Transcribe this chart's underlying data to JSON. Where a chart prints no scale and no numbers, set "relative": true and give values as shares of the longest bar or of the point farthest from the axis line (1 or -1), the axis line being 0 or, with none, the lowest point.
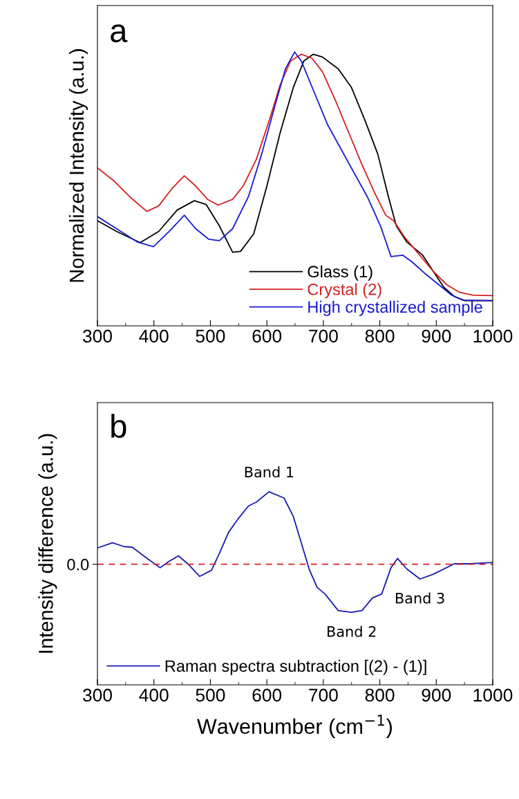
{
  "chart_data": [
    {
      "type": "line",
      "relative": true,
      "ylabel": "Normalized Intensity (a.u.)",
      "xlim": [
        300,
        1000
      ],
      "xticks": [
        300,
        400,
        500,
        600,
        700,
        800,
        900,
        1000
      ],
      "tick_labels": "x",
      "legend": "bottom right",
      "grid": false,
      "annotations": [
        "a"
      ],
      "series": [
        {
          "name": "Glass (1)",
          "color": "#000000",
          "x": [
            300,
            333.7,
            375.7,
            408.5,
            441.2,
            471.6,
            492.6,
            516,
            539.4,
            553.4,
            576.8,
            600.1,
            623.5,
            646.9,
            665.6,
            682,
            698.3,
            726.4,
            749.7,
            773.1,
            796.5,
            815.2,
            829.2,
            847.9,
            876,
            894.7,
            913.4,
            932.1,
            950.8,
            1000
          ],
          "values": [
            0.384,
            0.345,
            0.304,
            0.345,
            0.423,
            0.457,
            0.443,
            0.365,
            0.269,
            0.272,
            0.336,
            0.511,
            0.705,
            0.871,
            0.968,
            0.992,
            0.982,
            0.939,
            0.871,
            0.754,
            0.627,
            0.472,
            0.365,
            0.306,
            0.258,
            0.199,
            0.141,
            0.107,
            0.092,
            0.092
          ]
        },
        {
          "name": "Crystal (2)",
          "color": "#d42020",
          "x": [
            300,
            329,
            357,
            387.4,
            408.5,
            431.8,
            453.8,
            473.9,
            495,
            513.7,
            539.4,
            558.1,
            581.4,
            604.8,
            623.5,
            642.2,
            660.9,
            679.6,
            698.3,
            721.7,
            745.1,
            768.4,
            791.8,
            810.5,
            824.5,
            843.2,
            866.6,
            894.7,
            918,
            941.4,
            964.8,
            1000
          ],
          "values": [
            0.577,
            0.53,
            0.472,
            0.418,
            0.438,
            0.501,
            0.548,
            0.511,
            0.462,
            0.441,
            0.462,
            0.511,
            0.608,
            0.754,
            0.88,
            0.968,
            0.992,
            0.978,
            0.929,
            0.822,
            0.705,
            0.589,
            0.482,
            0.404,
            0.384,
            0.326,
            0.268,
            0.199,
            0.151,
            0.122,
            0.112,
            0.11
          ]
        },
        {
          "name": "High crystallized sample",
          "color": "#1a1ad0",
          "x": [
            300,
            333.7,
            371.1,
            399.1,
            427.2,
            453.8,
            473.9,
            497.3,
            516,
            539.4,
            567.4,
            590.8,
            614.2,
            632.9,
            649.2,
            660.9,
            684.3,
            707.7,
            731,
            754.4,
            777.8,
            801.2,
            819.9,
            840.9,
            857.3,
            880.6,
            904,
            927.4,
            946.1,
            1000
          ],
          "values": [
            0.399,
            0.355,
            0.306,
            0.289,
            0.345,
            0.404,
            0.355,
            0.316,
            0.311,
            0.355,
            0.472,
            0.627,
            0.803,
            0.939,
            1.0,
            0.968,
            0.851,
            0.734,
            0.647,
            0.559,
            0.472,
            0.365,
            0.253,
            0.258,
            0.233,
            0.19,
            0.151,
            0.112,
            0.094,
            0.092
          ]
        }
      ]
    },
    {
      "type": "line",
      "relative": true,
      "ylabel": "Intensity difference (a.u.)",
      "xlabel": "Wavenumber (cm$^{−1}$)",
      "xlim": [
        300,
        1000
      ],
      "xticks": [
        300,
        400,
        500,
        600,
        700,
        800,
        900,
        1000
      ],
      "legend": "bottom left",
      "grid": false,
      "ref_lines": [
        {
          "axis": "y",
          "value": 0,
          "label": "0.0",
          "color": "#d42020",
          "line_style": "dashed"
        }
      ],
      "annotations": [
        "b",
        {
          "text": "Band 1",
          "x": 604,
          "y": 1.0
        },
        {
          "text": "Band 2",
          "x": 750,
          "y": -0.663
        },
        {
          "text": "Band 3",
          "x": 871,
          "y": -0.203
        }
      ],
      "series": [
        {
          "name": "Raman spectra subtraction [(2) - (1)]",
          "color": "#1a1ab0",
          "x": [
            300,
            326.6,
            347.7,
            361.7,
            385.1,
            410.8,
            427.2,
            443.5,
            459.9,
            480.9,
            501.9,
            516,
            532.3,
            548.7,
            567.4,
            581.4,
            603.9,
            630.5,
            646.9,
            660.9,
            674.9,
            689,
            703,
            726.4,
            749.7,
            768.4,
            787.1,
            803.4,
            819.8,
            831.5,
            847.9,
            871.2,
            894.6,
            932,
            960,
            1000
          ],
          "values": [
            0.225,
            0.297,
            0.243,
            0.236,
            0.098,
            -0.047,
            0.043,
            0.116,
            0.007,
            -0.167,
            -0.083,
            0.152,
            0.442,
            0.623,
            0.804,
            0.859,
            1.0,
            0.913,
            0.659,
            0.297,
            -0.065,
            -0.319,
            -0.409,
            -0.638,
            -0.663,
            -0.638,
            -0.464,
            -0.409,
            -0.047,
            0.08,
            -0.065,
            -0.203,
            -0.138,
            0.007,
            0.007,
            0.025
          ]
        }
      ]
    }
  ]
}
